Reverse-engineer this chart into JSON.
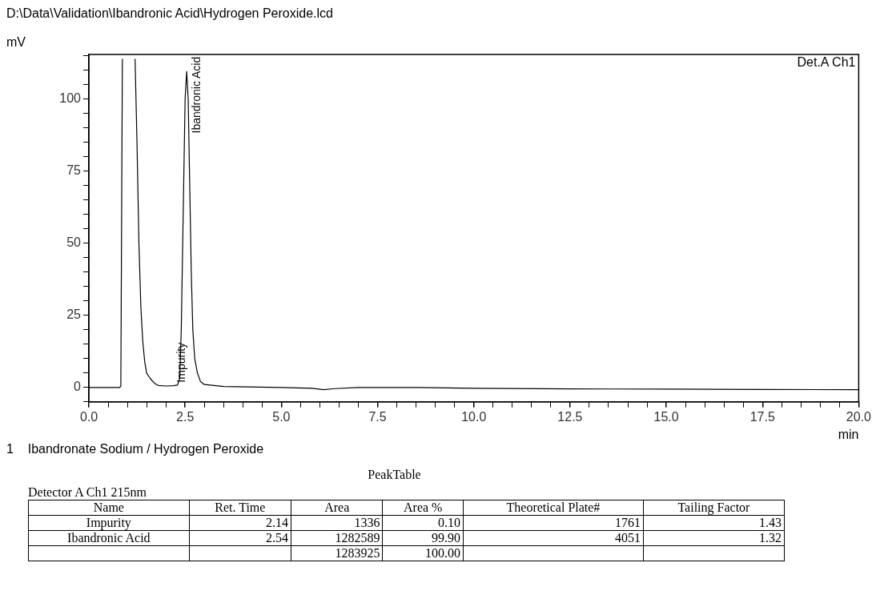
{
  "chart_data": {
    "type": "line",
    "title": "D:\\Data\\Validation\\Ibandronic Acid\\Hydrogen Peroxide.lcd",
    "xlabel": "min",
    "ylabel": "mV",
    "x": [
      0,
      0.5,
      0.8,
      0.83,
      0.87,
      null,
      1.2,
      1.25,
      1.3,
      1.35,
      1.4,
      1.45,
      1.5,
      1.6,
      1.7,
      1.8,
      2.0,
      2.2,
      2.3,
      2.36,
      2.4,
      2.45,
      2.5,
      2.54,
      2.58,
      2.62,
      2.66,
      2.7,
      2.75,
      2.82,
      2.9,
      3.0,
      3.5,
      5.0,
      5.8,
      6.1,
      6.4,
      7.0,
      8.5,
      10.0,
      12.5,
      15.0,
      17.5,
      20.0
    ],
    "series": [
      {
        "color": "#000000",
        "values": [
          0,
          0,
          0,
          0.5,
          114,
          null,
          114,
          85,
          50,
          28,
          16,
          9,
          5,
          3,
          1.5,
          0.7,
          0.5,
          0.6,
          0.8,
          3,
          20,
          60,
          100,
          109.6,
          100,
          70,
          40,
          20,
          10,
          5,
          2,
          1,
          0.3,
          0,
          -0.3,
          -0.8,
          -0.4,
          0,
          0,
          -0.3,
          -0.5,
          -0.6,
          -0.7,
          -0.8
        ]
      }
    ],
    "xlim": [
      0,
      20
    ],
    "ylim": [
      -5,
      115.5
    ],
    "xticks": [
      {
        "value": 0,
        "label": "0.0"
      },
      {
        "value": 0.5,
        "label": null
      },
      {
        "value": 1,
        "label": null
      },
      {
        "value": 1.5,
        "label": null
      },
      {
        "value": 2,
        "label": null
      },
      {
        "value": 2.5,
        "label": "2.5"
      },
      {
        "value": 3,
        "label": null
      },
      {
        "value": 3.5,
        "label": null
      },
      {
        "value": 4,
        "label": null
      },
      {
        "value": 4.5,
        "label": null
      },
      {
        "value": 5,
        "label": "5.0"
      },
      {
        "value": 5.5,
        "label": null
      },
      {
        "value": 6,
        "label": null
      },
      {
        "value": 6.5,
        "label": null
      },
      {
        "value": 7,
        "label": null
      },
      {
        "value": 7.5,
        "label": "7.5"
      },
      {
        "value": 8,
        "label": null
      },
      {
        "value": 8.5,
        "label": null
      },
      {
        "value": 9,
        "label": null
      },
      {
        "value": 9.5,
        "label": null
      },
      {
        "value": 10,
        "label": "10.0"
      },
      {
        "value": 10.5,
        "label": null
      },
      {
        "value": 11,
        "label": null
      },
      {
        "value": 11.5,
        "label": null
      },
      {
        "value": 12,
        "label": null
      },
      {
        "value": 12.5,
        "label": "12.5"
      },
      {
        "value": 13,
        "label": null
      },
      {
        "value": 13.5,
        "label": null
      },
      {
        "value": 14,
        "label": null
      },
      {
        "value": 14.5,
        "label": null
      },
      {
        "value": 15,
        "label": "15.0"
      },
      {
        "value": 15.5,
        "label": null
      },
      {
        "value": 16,
        "label": null
      },
      {
        "value": 16.5,
        "label": null
      },
      {
        "value": 17,
        "label": null
      },
      {
        "value": 17.5,
        "label": "17.5"
      },
      {
        "value": 18,
        "label": null
      },
      {
        "value": 18.5,
        "label": null
      },
      {
        "value": 19,
        "label": null
      },
      {
        "value": 19.5,
        "label": null
      },
      {
        "value": 20,
        "label": "20.0"
      }
    ],
    "yticks": [
      {
        "value": -5,
        "label": null
      },
      0,
      {
        "value": 5,
        "label": null
      },
      {
        "value": 10,
        "label": null
      },
      {
        "value": 15,
        "label": null
      },
      {
        "value": 20,
        "label": null
      },
      25,
      {
        "value": 30,
        "label": null
      },
      {
        "value": 35,
        "label": null
      },
      {
        "value": 40,
        "label": null
      },
      {
        "value": 45,
        "label": null
      },
      50,
      {
        "value": 55,
        "label": null
      },
      {
        "value": 60,
        "label": null
      },
      {
        "value": 65,
        "label": null
      },
      {
        "value": 70,
        "label": null
      },
      75,
      {
        "value": 80,
        "label": null
      },
      {
        "value": 85,
        "label": null
      },
      {
        "value": 90,
        "label": null
      },
      {
        "value": 95,
        "label": null
      },
      100,
      {
        "value": 105,
        "label": null
      },
      {
        "value": 110,
        "label": null
      },
      {
        "value": 115,
        "label": null
      }
    ],
    "grid": false,
    "legend": false,
    "marker": "none",
    "line_style": "solid",
    "annotations": [
      "Det.A Ch1",
      {
        "text": "Ibandronic Acid",
        "x": 2.54,
        "y": 109.6
      },
      {
        "text": "Impurity",
        "x": 2.14,
        "y": 0.6
      },
      "1    Ibandronate Sodium / Hydrogen Peroxide",
      "PeakTable",
      "Detector A Ch1 215nm",
      "Name\tRet. Time\tArea\tArea %\tTheoretical Plate#\tTailing Factor",
      "Impurity\t2.14\t1336\t0.10\t1761\t1.43",
      "Ibandronic Acid\t2.54\t1282589\t99.90\t4051\t1.32",
      "\t\t1283925\t100.00\t\t"
    ]
  }
}
